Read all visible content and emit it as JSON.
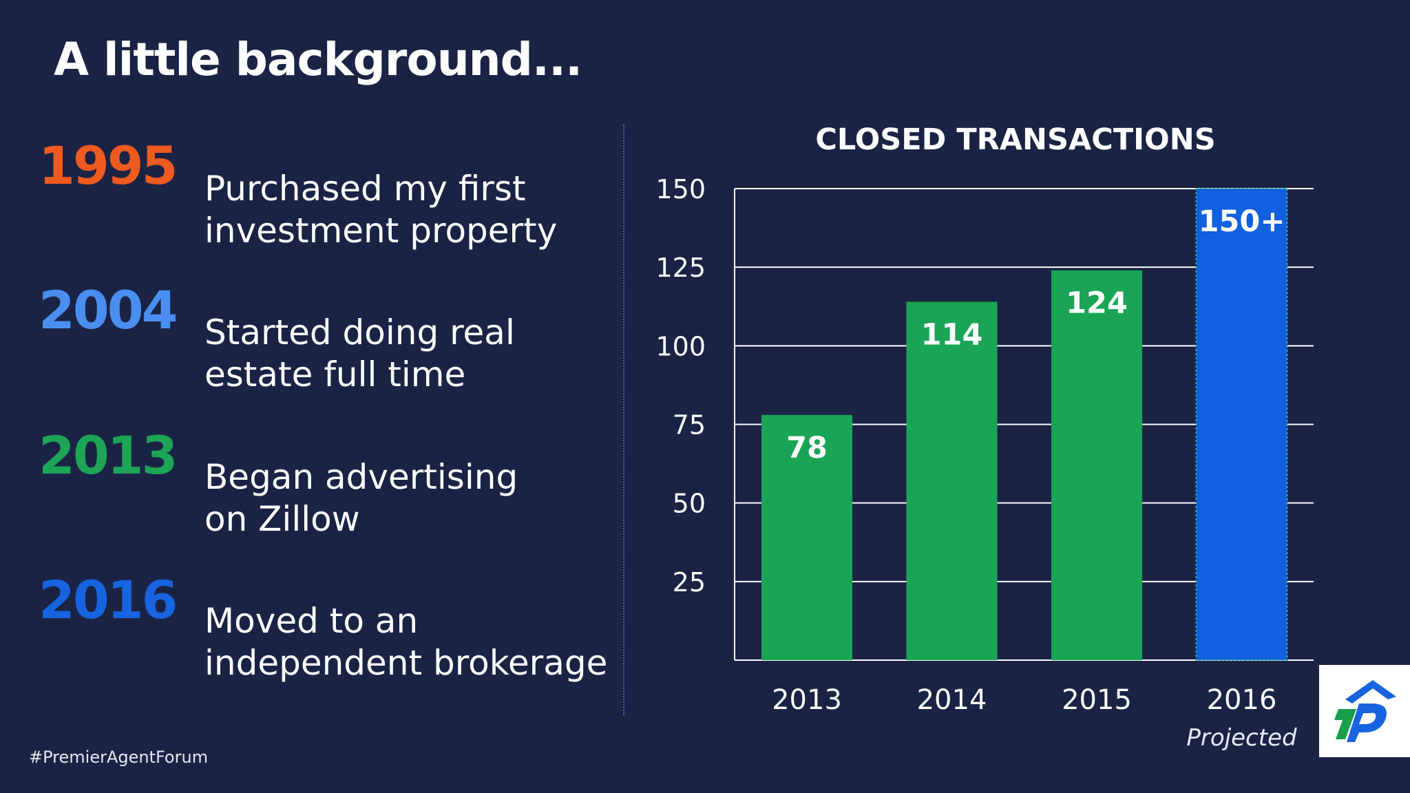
{
  "slide": {
    "title": "A little background...",
    "hashtag": "#PremierAgentForum"
  },
  "timeline": [
    {
      "year": "1995",
      "text": "Purchased my first\ninvestment property",
      "color": "#ef5a1f"
    },
    {
      "year": "2004",
      "text": "Started doing real\nestate full time",
      "color": "#4a8ff0"
    },
    {
      "year": "2013",
      "text": "Began advertising\non Zillow",
      "color": "#1da456"
    },
    {
      "year": "2016",
      "text": "Moved to an\nindependent brokerage",
      "color": "#1763e0"
    }
  ],
  "chart_data": {
    "type": "bar",
    "title": "CLOSED TRANSACTIONS",
    "categories": [
      "2013",
      "2014",
      "2015",
      "2016"
    ],
    "category_sublabels": [
      "",
      "",
      "",
      "Projected"
    ],
    "values": [
      78,
      114,
      124,
      150
    ],
    "data_labels": [
      "78",
      "114",
      "124",
      "150+"
    ],
    "bar_colors": [
      "#19a555",
      "#19a555",
      "#19a555",
      "#1060e0"
    ],
    "ylim": [
      0,
      150
    ],
    "yticks": [
      25,
      50,
      75,
      100,
      125,
      150
    ],
    "xlabel": "",
    "ylabel": "",
    "grid": true,
    "legend": "none"
  },
  "logo": {
    "name": "brokerage-logo-icon",
    "colors": [
      "#1a9e4b",
      "#1763e0"
    ]
  }
}
